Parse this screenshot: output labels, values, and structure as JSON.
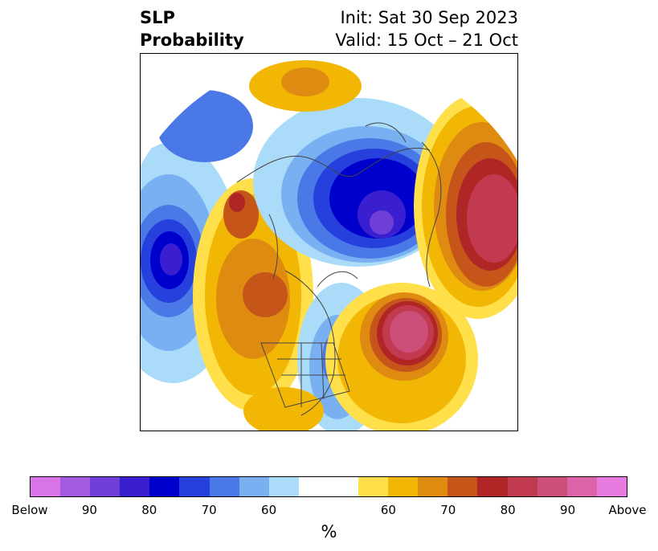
{
  "title": {
    "left_line1": "SLP",
    "left_line2": "Probability",
    "right_line1": "Init: Sat 30 Sep 2023",
    "right_line2": "Valid: 15 Oct – 21 Oct"
  },
  "colorbar": {
    "segments": [
      {
        "color": "#d973e8"
      },
      {
        "color": "#a35ae0"
      },
      {
        "color": "#6f3fd8"
      },
      {
        "color": "#3a1fd1"
      },
      {
        "color": "#0000cc"
      },
      {
        "color": "#2540dd"
      },
      {
        "color": "#4a78e6"
      },
      {
        "color": "#78b0f2"
      },
      {
        "color": "#aadcfa"
      },
      {
        "color": "#ffffff",
        "wide": true
      },
      {
        "color": "#ffe04a"
      },
      {
        "color": "#f2b705"
      },
      {
        "color": "#df8a10"
      },
      {
        "color": "#c6551a"
      },
      {
        "color": "#b02525"
      },
      {
        "color": "#c23a50"
      },
      {
        "color": "#cc4f7a"
      },
      {
        "color": "#dc63a8"
      },
      {
        "color": "#e87be0"
      }
    ],
    "tick_labels": [
      "Below",
      "90",
      "80",
      "70",
      "60",
      "60",
      "70",
      "80",
      "90",
      "Above"
    ],
    "unit": "%"
  },
  "map": {
    "projection": "north-polar-stereographic",
    "anomalies": [
      {
        "region": "Baltic / western Russia",
        "sign": "below",
        "peak": "Below"
      },
      {
        "region": "North Pacific",
        "sign": "below",
        "peak": "90"
      },
      {
        "region": "Northwest Russia / Ural",
        "sign": "above",
        "peak": "90"
      },
      {
        "region": "North Atlantic",
        "sign": "above",
        "peak": "90"
      },
      {
        "region": "Alaska / Bering",
        "sign": "above",
        "peak": "80"
      },
      {
        "region": "Western Canada",
        "sign": "above",
        "peak": "70"
      },
      {
        "region": "Northern Europe",
        "sign": "above",
        "peak": "70"
      },
      {
        "region": "Eastern North America",
        "sign": "below",
        "peak": "60"
      }
    ]
  }
}
